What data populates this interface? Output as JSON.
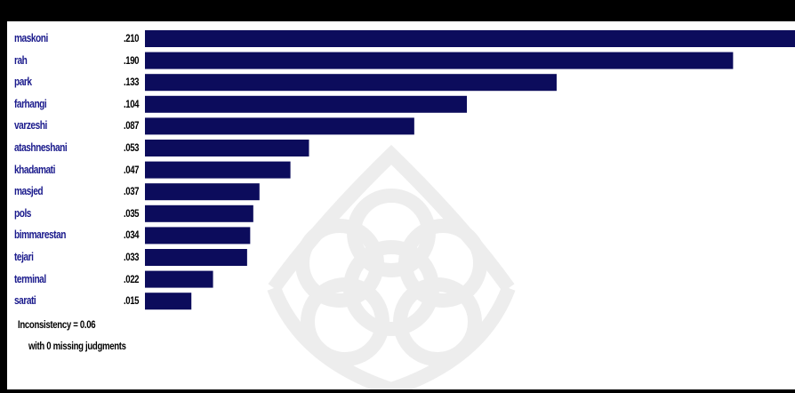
{
  "chart_data": {
    "type": "bar",
    "orientation": "horizontal",
    "categories": [
      "maskoni",
      "rah",
      "park",
      "farhangi",
      "varzeshi",
      "atashneshani",
      "khadamati",
      "masjed",
      "pols",
      "bimmarestan",
      "tejari",
      "terminal",
      "sarati"
    ],
    "value_labels": [
      ".210",
      ".190",
      ".133",
      ".104",
      ".087",
      ".053",
      ".047",
      ".037",
      ".035",
      ".034",
      ".033",
      ".022",
      ".015"
    ],
    "values": [
      0.21,
      0.19,
      0.133,
      0.104,
      0.087,
      0.053,
      0.047,
      0.037,
      0.035,
      0.034,
      0.033,
      0.022,
      0.015
    ],
    "xlim": [
      0,
      0.21
    ],
    "grid": false,
    "bar_color": "#0c0c5c",
    "label_color": "#1a1a8c"
  },
  "footer": {
    "inconsistency": "Inconsistency = 0.06",
    "missing": "with 0 missing judgments"
  }
}
